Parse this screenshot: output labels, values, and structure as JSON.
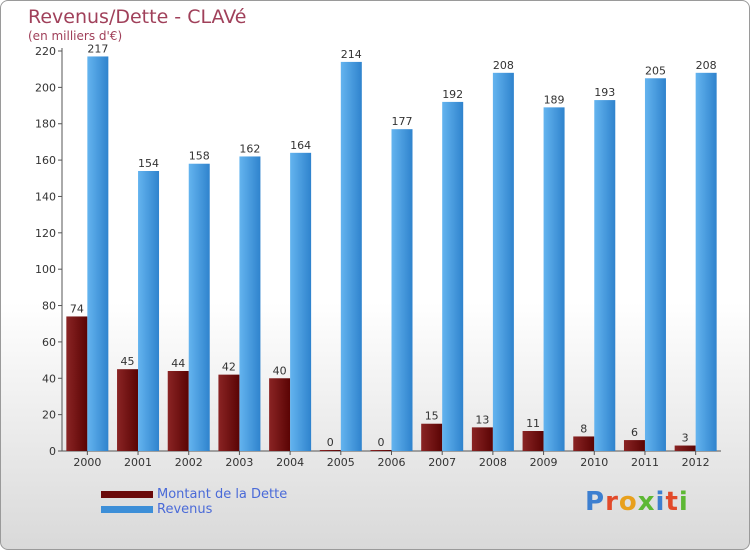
{
  "chart_data": {
    "type": "bar",
    "title": "Revenus/Dette - CLAVé",
    "subtitle": "(en milliers d'€)",
    "categories": [
      "2000",
      "2001",
      "2002",
      "2003",
      "2004",
      "2005",
      "2006",
      "2007",
      "2008",
      "2009",
      "2010",
      "2011",
      "2012"
    ],
    "series": [
      {
        "name": "Montant de la Dette",
        "color": "#6b0a0a",
        "values": [
          74,
          45,
          44,
          42,
          40,
          0,
          0,
          15,
          13,
          11,
          8,
          6,
          3
        ]
      },
      {
        "name": "Revenus",
        "color": "#3d8fd8",
        "values": [
          217,
          154,
          158,
          162,
          164,
          214,
          177,
          192,
          208,
          189,
          193,
          205,
          208
        ]
      }
    ],
    "ylim": [
      0,
      220
    ],
    "yticks": [
      0,
      20,
      40,
      60,
      80,
      100,
      120,
      140,
      160,
      180,
      200,
      220
    ],
    "grid": false,
    "legend_position": "bottom-left"
  },
  "logo": {
    "letters": [
      {
        "ch": "P",
        "color": "#3d7fd0"
      },
      {
        "ch": "r",
        "color": "#e24a2a"
      },
      {
        "ch": "o",
        "color": "#e8a01c"
      },
      {
        "ch": "x",
        "color": "#5db834"
      },
      {
        "ch": "i",
        "color": "#3d7fd0"
      },
      {
        "ch": "t",
        "color": "#e24a2a"
      },
      {
        "ch": "i",
        "color": "#5db834"
      }
    ]
  }
}
